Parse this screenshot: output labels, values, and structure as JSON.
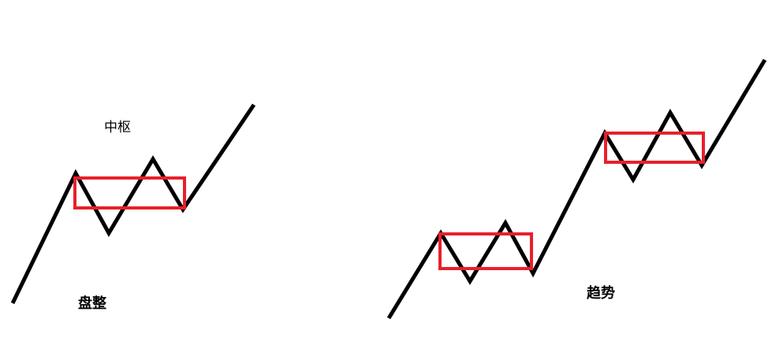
{
  "labels": {
    "zhongshu": "中枢",
    "panzheng": "盘整",
    "qushi": "趋势"
  },
  "colors": {
    "line": "#000000",
    "box": "#e8202a",
    "background": "#ffffff"
  }
}
